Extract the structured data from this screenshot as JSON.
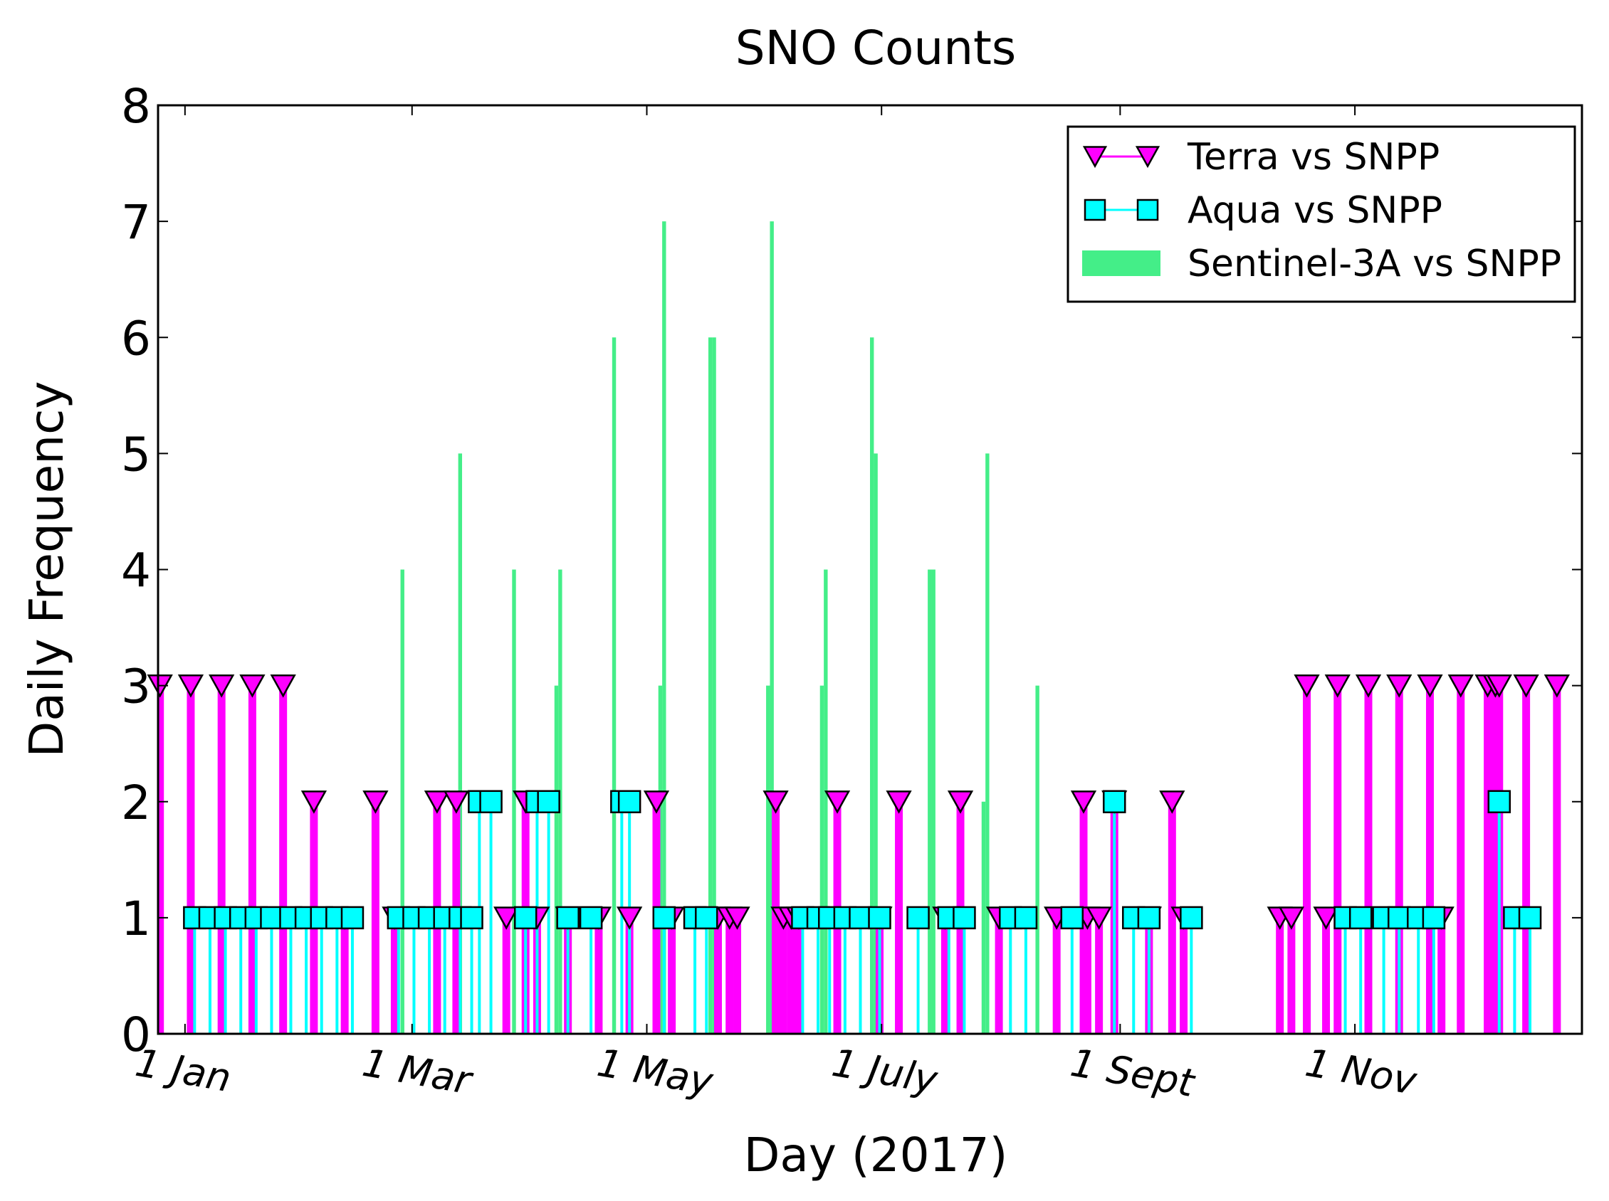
{
  "chart_data": {
    "type": "bar",
    "title": "SNO Counts",
    "xlabel": "Day (2017)",
    "ylabel": "Daily Frequency",
    "xlim": [
      "2016-12-25",
      "2017-12-30"
    ],
    "ylim": [
      0,
      8
    ],
    "yticks": [
      0,
      1,
      2,
      3,
      4,
      5,
      6,
      7,
      8
    ],
    "xticks": [
      {
        "date": "2017-01-01",
        "label": "1 Jan"
      },
      {
        "date": "2017-03-01",
        "label": "1 Mar"
      },
      {
        "date": "2017-05-01",
        "label": "1 May"
      },
      {
        "date": "2017-07-01",
        "label": "1 July"
      },
      {
        "date": "2017-09-01",
        "label": "1 Sept"
      },
      {
        "date": "2017-11-01",
        "label": "1 Nov"
      }
    ],
    "legend_position": "top-right",
    "grid": false,
    "series": [
      {
        "name": "Sentinel-3A vs SNPP",
        "style": "bar",
        "color": "#44ee88",
        "points": [
          [
            "2017-02-26",
            4
          ],
          [
            "2017-03-13",
            5
          ],
          [
            "2017-03-27",
            4
          ],
          [
            "2017-04-07",
            3
          ],
          [
            "2017-04-08",
            4
          ],
          [
            "2017-04-22",
            6
          ],
          [
            "2017-05-04",
            3
          ],
          [
            "2017-05-05",
            7
          ],
          [
            "2017-05-17",
            6
          ],
          [
            "2017-05-18",
            6
          ],
          [
            "2017-06-01",
            3
          ],
          [
            "2017-06-02",
            7
          ],
          [
            "2017-06-15",
            3
          ],
          [
            "2017-06-16",
            4
          ],
          [
            "2017-06-28",
            6
          ],
          [
            "2017-06-29",
            5
          ],
          [
            "2017-07-13",
            4
          ],
          [
            "2017-07-14",
            4
          ],
          [
            "2017-07-27",
            2
          ],
          [
            "2017-07-28",
            5
          ],
          [
            "2017-08-10",
            3
          ]
        ]
      },
      {
        "name": "Terra vs SNPP",
        "style": "stem",
        "marker": "triangle-down",
        "color": "#ff00ff",
        "points": [
          [
            "2016-12-25",
            3
          ],
          [
            "2017-01-02",
            3
          ],
          [
            "2017-01-10",
            3
          ],
          [
            "2017-01-18",
            3
          ],
          [
            "2017-01-26",
            3
          ],
          [
            "2017-02-03",
            2
          ],
          [
            "2017-02-11",
            1
          ],
          [
            "2017-02-19",
            2
          ],
          [
            "2017-02-24",
            1
          ],
          [
            "2017-03-07",
            2
          ],
          [
            "2017-03-12",
            2
          ],
          [
            "2017-03-25",
            1
          ],
          [
            "2017-03-30",
            2
          ],
          [
            "2017-04-02",
            1
          ],
          [
            "2017-04-10",
            1
          ],
          [
            "2017-04-18",
            1
          ],
          [
            "2017-04-26",
            1
          ],
          [
            "2017-05-03",
            2
          ],
          [
            "2017-05-07",
            1
          ],
          [
            "2017-05-19",
            1
          ],
          [
            "2017-05-22",
            1
          ],
          [
            "2017-05-24",
            1
          ],
          [
            "2017-06-03",
            2
          ],
          [
            "2017-06-05",
            1
          ],
          [
            "2017-06-07",
            1
          ],
          [
            "2017-06-09",
            1
          ],
          [
            "2017-06-19",
            2
          ],
          [
            "2017-06-30",
            1
          ],
          [
            "2017-07-05",
            2
          ],
          [
            "2017-07-17",
            1
          ],
          [
            "2017-07-21",
            2
          ],
          [
            "2017-07-31",
            1
          ],
          [
            "2017-08-15",
            1
          ],
          [
            "2017-08-22",
            2
          ],
          [
            "2017-08-23",
            1
          ],
          [
            "2017-08-26",
            1
          ],
          [
            "2017-08-30",
            2
          ],
          [
            "2017-09-08",
            1
          ],
          [
            "2017-09-14",
            2
          ],
          [
            "2017-09-17",
            1
          ],
          [
            "2017-10-12",
            1
          ],
          [
            "2017-10-15",
            1
          ],
          [
            "2017-10-19",
            3
          ],
          [
            "2017-10-24",
            1
          ],
          [
            "2017-10-27",
            3
          ],
          [
            "2017-11-04",
            3
          ],
          [
            "2017-11-12",
            3
          ],
          [
            "2017-11-20",
            3
          ],
          [
            "2017-11-23",
            1
          ],
          [
            "2017-11-28",
            3
          ],
          [
            "2017-12-05",
            3
          ],
          [
            "2017-12-07",
            3
          ],
          [
            "2017-12-08",
            3
          ],
          [
            "2017-12-15",
            3
          ],
          [
            "2017-12-23",
            3
          ]
        ]
      },
      {
        "name": "Aqua vs SNPP",
        "style": "stem",
        "marker": "square",
        "color": "#00ffff",
        "points": [
          [
            "2017-01-03",
            1
          ],
          [
            "2017-01-07",
            1
          ],
          [
            "2017-01-11",
            1
          ],
          [
            "2017-01-15",
            1
          ],
          [
            "2017-01-19",
            1
          ],
          [
            "2017-01-23",
            1
          ],
          [
            "2017-01-28",
            1
          ],
          [
            "2017-02-01",
            1
          ],
          [
            "2017-02-05",
            1
          ],
          [
            "2017-02-09",
            1
          ],
          [
            "2017-02-13",
            1
          ],
          [
            "2017-02-25",
            1
          ],
          [
            "2017-03-01",
            1
          ],
          [
            "2017-03-05",
            1
          ],
          [
            "2017-03-09",
            1
          ],
          [
            "2017-03-13",
            1
          ],
          [
            "2017-03-16",
            1
          ],
          [
            "2017-03-18",
            2
          ],
          [
            "2017-03-21",
            2
          ],
          [
            "2017-03-30",
            1
          ],
          [
            "2017-04-02",
            2
          ],
          [
            "2017-04-05",
            2
          ],
          [
            "2017-04-10",
            1
          ],
          [
            "2017-04-16",
            1
          ],
          [
            "2017-04-24",
            2
          ],
          [
            "2017-04-26",
            2
          ],
          [
            "2017-05-05",
            1
          ],
          [
            "2017-05-13",
            1
          ],
          [
            "2017-05-16",
            1
          ],
          [
            "2017-06-10",
            1
          ],
          [
            "2017-06-14",
            1
          ],
          [
            "2017-06-17",
            1
          ],
          [
            "2017-06-21",
            1
          ],
          [
            "2017-06-25",
            1
          ],
          [
            "2017-06-30",
            1
          ],
          [
            "2017-07-10",
            1
          ],
          [
            "2017-07-18",
            1
          ],
          [
            "2017-07-22",
            1
          ],
          [
            "2017-08-03",
            1
          ],
          [
            "2017-08-07",
            1
          ],
          [
            "2017-08-19",
            1
          ],
          [
            "2017-08-30",
            2
          ],
          [
            "2017-09-04",
            1
          ],
          [
            "2017-09-08",
            1
          ],
          [
            "2017-09-19",
            1
          ],
          [
            "2017-10-29",
            1
          ],
          [
            "2017-11-02",
            1
          ],
          [
            "2017-11-08",
            1
          ],
          [
            "2017-11-12",
            1
          ],
          [
            "2017-11-17",
            1
          ],
          [
            "2017-11-21",
            1
          ],
          [
            "2017-12-08",
            2
          ],
          [
            "2017-12-12",
            1
          ],
          [
            "2017-12-16",
            1
          ]
        ]
      }
    ]
  }
}
